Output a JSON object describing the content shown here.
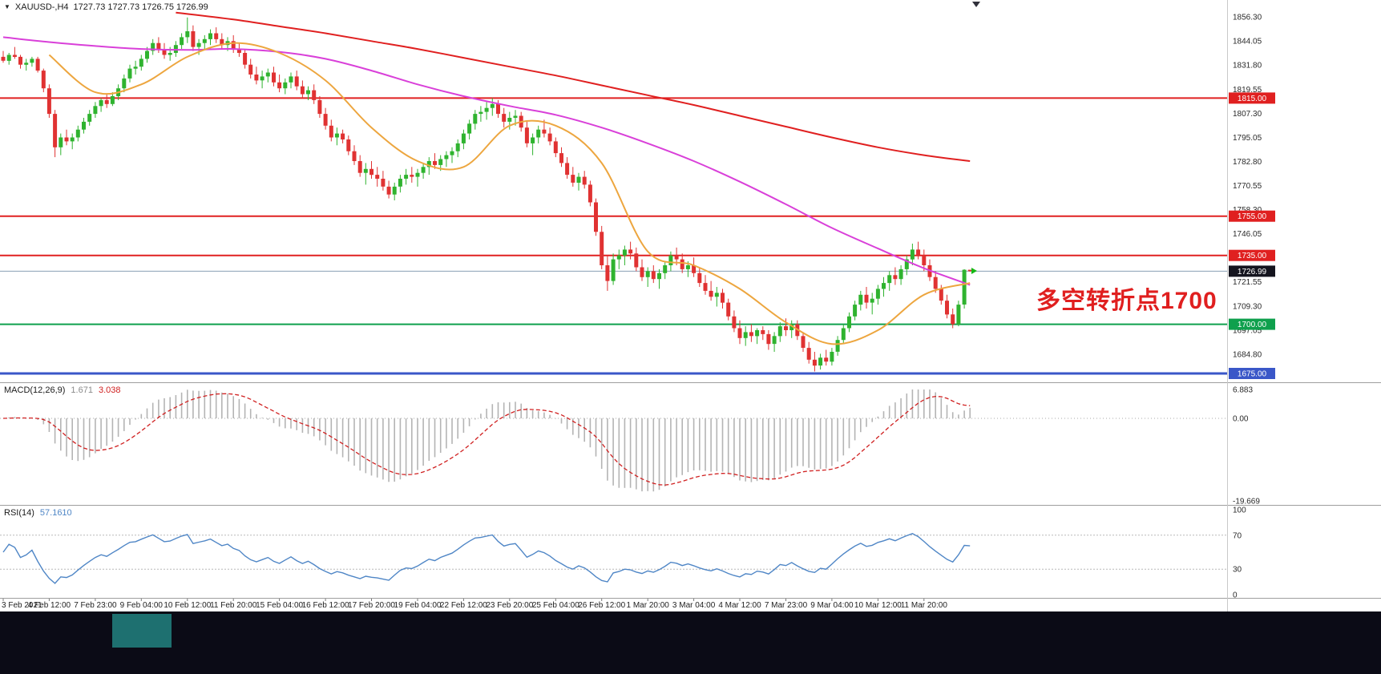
{
  "window": {
    "dropdown_icon": "▼",
    "symbol_period": "XAUUSD-,H4",
    "ohlc_text": "1727.73 1727.73 1726.75 1726.99",
    "annotation": {
      "text": "多空转折点1700",
      "color": "#e01f1f"
    }
  },
  "colors": {
    "background": "#ffffff",
    "candle_up": "#2fb32f",
    "candle_down": "#e03232",
    "ma_red": "#e02020",
    "ma_magenta": "#d940d9",
    "ma_orange": "#eda63f",
    "histogram": "#b4b4b4",
    "signal_line": "#d02020",
    "rsi_line": "#4f86c6",
    "separator": "#9e9e9e",
    "scale_text": "#2a2a2a",
    "current_price_line": "#8aa0b4",
    "current_price_box": "#14141e",
    "bottom_bar_bg": "#0b0b16",
    "bottom_bar_accent": "#1e7070"
  },
  "chart_data": {
    "type": "candlestick",
    "symbol": "XAUUSD-",
    "timeframe": "H4",
    "price_axis": {
      "top": 1864.9,
      "bottom": 1670.5,
      "ticks": [
        "1856.30",
        "1844.05",
        "1831.80",
        "1819.55",
        "1807.30",
        "1795.05",
        "1782.80",
        "1770.55",
        "1758.30",
        "1746.05",
        "1733.80",
        "1721.55",
        "1709.30",
        "1697.05",
        "1684.80",
        "1672.55"
      ]
    },
    "hlines": [
      {
        "price": 1815.0,
        "label": "1815.00",
        "color": "#e02020",
        "width": 2
      },
      {
        "price": 1755.0,
        "label": "1755.00",
        "color": "#e02020",
        "width": 2
      },
      {
        "price": 1735.0,
        "label": "1735.00",
        "color": "#e02020",
        "width": 2
      },
      {
        "price": 1700.0,
        "label": "1700.00",
        "color": "#0fa04d",
        "width": 2
      },
      {
        "price": 1675.0,
        "label": "1675.00",
        "color": "#3a57c8",
        "width": 3
      }
    ],
    "current_price": {
      "value": 1726.99,
      "label": "1726.99"
    },
    "candles": [
      [
        1836,
        1839,
        1833,
        1834
      ],
      [
        1834,
        1838,
        1832,
        1837
      ],
      [
        1837,
        1841,
        1835,
        1836
      ],
      [
        1836,
        1837,
        1830,
        1832
      ],
      [
        1832,
        1835,
        1829,
        1833
      ],
      [
        1833,
        1836,
        1831,
        1835
      ],
      [
        1835,
        1836,
        1828,
        1829
      ],
      [
        1829,
        1830,
        1818,
        1820
      ],
      [
        1820,
        1822,
        1805,
        1807
      ],
      [
        1807,
        1809,
        1785,
        1790
      ],
      [
        1790,
        1797,
        1786,
        1795
      ],
      [
        1795,
        1799,
        1791,
        1793
      ],
      [
        1793,
        1797,
        1789,
        1795
      ],
      [
        1795,
        1801,
        1793,
        1799
      ],
      [
        1799,
        1805,
        1797,
        1803
      ],
      [
        1803,
        1809,
        1801,
        1807
      ],
      [
        1807,
        1813,
        1805,
        1811
      ],
      [
        1811,
        1815,
        1808,
        1814
      ],
      [
        1814,
        1817,
        1810,
        1812
      ],
      [
        1812,
        1818,
        1811,
        1816
      ],
      [
        1816,
        1822,
        1814,
        1820
      ],
      [
        1820,
        1827,
        1818,
        1825
      ],
      [
        1825,
        1832,
        1823,
        1830
      ],
      [
        1830,
        1834,
        1827,
        1831
      ],
      [
        1831,
        1837,
        1829,
        1835
      ],
      [
        1835,
        1841,
        1833,
        1839
      ],
      [
        1839,
        1845,
        1837,
        1843
      ],
      [
        1843,
        1846,
        1838,
        1840
      ],
      [
        1840,
        1843,
        1835,
        1837
      ],
      [
        1837,
        1841,
        1834,
        1838
      ],
      [
        1838,
        1844,
        1836,
        1842
      ],
      [
        1842,
        1848,
        1840,
        1846
      ],
      [
        1846,
        1856,
        1843,
        1849
      ],
      [
        1849,
        1852,
        1839,
        1841
      ],
      [
        1841,
        1845,
        1837,
        1843
      ],
      [
        1843,
        1847,
        1840,
        1845
      ],
      [
        1845,
        1850,
        1842,
        1848
      ],
      [
        1848,
        1851,
        1843,
        1845
      ],
      [
        1845,
        1848,
        1840,
        1842
      ],
      [
        1842,
        1846,
        1839,
        1844
      ],
      [
        1844,
        1847,
        1838,
        1840
      ],
      [
        1840,
        1843,
        1836,
        1838
      ],
      [
        1838,
        1840,
        1830,
        1832
      ],
      [
        1832,
        1835,
        1825,
        1827
      ],
      [
        1827,
        1831,
        1822,
        1824
      ],
      [
        1824,
        1829,
        1820,
        1826
      ],
      [
        1826,
        1830,
        1823,
        1828
      ],
      [
        1828,
        1831,
        1821,
        1823
      ],
      [
        1823,
        1827,
        1818,
        1820
      ],
      [
        1820,
        1825,
        1817,
        1823
      ],
      [
        1823,
        1828,
        1820,
        1826
      ],
      [
        1826,
        1829,
        1819,
        1821
      ],
      [
        1821,
        1824,
        1815,
        1817
      ],
      [
        1817,
        1821,
        1814,
        1819
      ],
      [
        1819,
        1822,
        1812,
        1814
      ],
      [
        1814,
        1816,
        1805,
        1807
      ],
      [
        1807,
        1810,
        1799,
        1801
      ],
      [
        1801,
        1804,
        1793,
        1795
      ],
      [
        1795,
        1800,
        1791,
        1797
      ],
      [
        1797,
        1799,
        1792,
        1794
      ],
      [
        1794,
        1796,
        1786,
        1788
      ],
      [
        1788,
        1791,
        1781,
        1783
      ],
      [
        1783,
        1786,
        1775,
        1777
      ],
      [
        1777,
        1782,
        1771,
        1779
      ],
      [
        1779,
        1783,
        1774,
        1776
      ],
      [
        1776,
        1780,
        1770,
        1774
      ],
      [
        1774,
        1778,
        1768,
        1770
      ],
      [
        1770,
        1773,
        1764,
        1766
      ],
      [
        1766,
        1772,
        1763,
        1770
      ],
      [
        1770,
        1776,
        1767,
        1774
      ],
      [
        1774,
        1779,
        1771,
        1776
      ],
      [
        1776,
        1780,
        1772,
        1775
      ],
      [
        1775,
        1779,
        1770,
        1777
      ],
      [
        1777,
        1782,
        1774,
        1780
      ],
      [
        1780,
        1785,
        1776,
        1783
      ],
      [
        1783,
        1787,
        1779,
        1781
      ],
      [
        1781,
        1786,
        1778,
        1784
      ],
      [
        1784,
        1788,
        1780,
        1786
      ],
      [
        1786,
        1790,
        1782,
        1788
      ],
      [
        1788,
        1794,
        1785,
        1792
      ],
      [
        1792,
        1799,
        1789,
        1797
      ],
      [
        1797,
        1804,
        1794,
        1802
      ],
      [
        1802,
        1809,
        1799,
        1807
      ],
      [
        1807,
        1811,
        1803,
        1808
      ],
      [
        1808,
        1813,
        1804,
        1810
      ],
      [
        1810,
        1815,
        1806,
        1812
      ],
      [
        1812,
        1814,
        1805,
        1807
      ],
      [
        1807,
        1810,
        1800,
        1803
      ],
      [
        1803,
        1808,
        1799,
        1805
      ],
      [
        1805,
        1809,
        1801,
        1806
      ],
      [
        1806,
        1808,
        1798,
        1800
      ],
      [
        1800,
        1803,
        1790,
        1792
      ],
      [
        1792,
        1797,
        1786,
        1795
      ],
      [
        1795,
        1801,
        1792,
        1799
      ],
      [
        1799,
        1804,
        1795,
        1797
      ],
      [
        1797,
        1800,
        1791,
        1793
      ],
      [
        1793,
        1795,
        1785,
        1787
      ],
      [
        1787,
        1790,
        1780,
        1782
      ],
      [
        1782,
        1785,
        1774,
        1776
      ],
      [
        1776,
        1780,
        1770,
        1772
      ],
      [
        1772,
        1777,
        1768,
        1775
      ],
      [
        1775,
        1778,
        1769,
        1771
      ],
      [
        1771,
        1773,
        1760,
        1762
      ],
      [
        1762,
        1764,
        1745,
        1747
      ],
      [
        1747,
        1750,
        1728,
        1730
      ],
      [
        1730,
        1735,
        1717,
        1722
      ],
      [
        1722,
        1736,
        1720,
        1733
      ],
      [
        1733,
        1738,
        1728,
        1735
      ],
      [
        1735,
        1740,
        1730,
        1738
      ],
      [
        1738,
        1742,
        1733,
        1736
      ],
      [
        1736,
        1739,
        1727,
        1729
      ],
      [
        1729,
        1733,
        1722,
        1724
      ],
      [
        1724,
        1729,
        1719,
        1727
      ],
      [
        1727,
        1730,
        1721,
        1723
      ],
      [
        1723,
        1728,
        1718,
        1726
      ],
      [
        1726,
        1732,
        1723,
        1730
      ],
      [
        1730,
        1737,
        1727,
        1735
      ],
      [
        1735,
        1739,
        1730,
        1733
      ],
      [
        1733,
        1736,
        1726,
        1728
      ],
      [
        1728,
        1732,
        1724,
        1730
      ],
      [
        1730,
        1734,
        1724,
        1726
      ],
      [
        1726,
        1729,
        1719,
        1721
      ],
      [
        1721,
        1725,
        1715,
        1717
      ],
      [
        1717,
        1722,
        1712,
        1714
      ],
      [
        1714,
        1719,
        1709,
        1716
      ],
      [
        1716,
        1718,
        1708,
        1711
      ],
      [
        1711,
        1713,
        1702,
        1704
      ],
      [
        1704,
        1707,
        1696,
        1698
      ],
      [
        1698,
        1702,
        1690,
        1693
      ],
      [
        1693,
        1699,
        1689,
        1696
      ],
      [
        1696,
        1700,
        1691,
        1694
      ],
      [
        1694,
        1698,
        1690,
        1697
      ],
      [
        1697,
        1699,
        1692,
        1695
      ],
      [
        1695,
        1697,
        1687,
        1690
      ],
      [
        1690,
        1696,
        1686,
        1694
      ],
      [
        1694,
        1701,
        1691,
        1699
      ],
      [
        1699,
        1703,
        1694,
        1697
      ],
      [
        1697,
        1702,
        1693,
        1700
      ],
      [
        1700,
        1702,
        1692,
        1694
      ],
      [
        1694,
        1696,
        1686,
        1688
      ],
      [
        1688,
        1691,
        1680,
        1682
      ],
      [
        1682,
        1686,
        1676,
        1679
      ],
      [
        1679,
        1685,
        1677,
        1683
      ],
      [
        1683,
        1687,
        1679,
        1681
      ],
      [
        1681,
        1688,
        1679,
        1686
      ],
      [
        1686,
        1694,
        1684,
        1692
      ],
      [
        1692,
        1700,
        1690,
        1698
      ],
      [
        1698,
        1706,
        1696,
        1704
      ],
      [
        1704,
        1712,
        1702,
        1710
      ],
      [
        1710,
        1717,
        1707,
        1715
      ],
      [
        1715,
        1719,
        1708,
        1711
      ],
      [
        1711,
        1716,
        1705,
        1713
      ],
      [
        1713,
        1720,
        1710,
        1718
      ],
      [
        1718,
        1724,
        1714,
        1721
      ],
      [
        1721,
        1727,
        1717,
        1725
      ],
      [
        1725,
        1729,
        1720,
        1723
      ],
      [
        1723,
        1730,
        1720,
        1728
      ],
      [
        1728,
        1735,
        1725,
        1733
      ],
      [
        1733,
        1741,
        1730,
        1738
      ],
      [
        1738,
        1742,
        1733,
        1735
      ],
      [
        1735,
        1738,
        1727,
        1730
      ],
      [
        1730,
        1733,
        1722,
        1724
      ],
      [
        1724,
        1727,
        1716,
        1718
      ],
      [
        1718,
        1720,
        1710,
        1712
      ],
      [
        1712,
        1715,
        1703,
        1705
      ],
      [
        1705,
        1708,
        1698,
        1700
      ],
      [
        1700,
        1712,
        1699,
        1710
      ],
      [
        1710,
        1728,
        1708,
        1727.7
      ],
      [
        1727.73,
        1727.73,
        1726.75,
        1726.99
      ]
    ],
    "ma_lines": [
      {
        "name": "sma-long-red",
        "color": "#e02020",
        "width": 2,
        "points": [
          [
            30,
            1858.5
          ],
          [
            40,
            1855
          ],
          [
            48,
            1851.5
          ],
          [
            56,
            1848
          ],
          [
            64,
            1844
          ],
          [
            72,
            1840
          ],
          [
            80,
            1835.5
          ],
          [
            88,
            1831
          ],
          [
            96,
            1826.5
          ],
          [
            104,
            1821.5
          ],
          [
            112,
            1816.5
          ],
          [
            120,
            1811.5
          ],
          [
            128,
            1806
          ],
          [
            136,
            1800.5
          ],
          [
            144,
            1795
          ],
          [
            152,
            1790
          ],
          [
            160,
            1786
          ],
          [
            168,
            1783
          ]
        ]
      },
      {
        "name": "sma-mid-magenta",
        "color": "#d940d9",
        "width": 2,
        "points": [
          [
            0,
            1846
          ],
          [
            8,
            1843.5
          ],
          [
            16,
            1841.5
          ],
          [
            24,
            1840
          ],
          [
            32,
            1839.5
          ],
          [
            40,
            1840
          ],
          [
            48,
            1838.5
          ],
          [
            56,
            1835
          ],
          [
            64,
            1829
          ],
          [
            72,
            1822
          ],
          [
            80,
            1816
          ],
          [
            88,
            1811
          ],
          [
            96,
            1806.5
          ],
          [
            104,
            1800
          ],
          [
            112,
            1792
          ],
          [
            120,
            1783
          ],
          [
            128,
            1772.5
          ],
          [
            136,
            1761
          ],
          [
            144,
            1749
          ],
          [
            152,
            1738.5
          ],
          [
            160,
            1728.5
          ],
          [
            168,
            1720
          ]
        ]
      },
      {
        "name": "sma-short-orange",
        "color": "#eda63f",
        "width": 2,
        "points": [
          [
            8,
            1837
          ],
          [
            16,
            1818
          ],
          [
            24,
            1822
          ],
          [
            32,
            1836
          ],
          [
            40,
            1843
          ],
          [
            48,
            1838
          ],
          [
            56,
            1824
          ],
          [
            64,
            1800
          ],
          [
            72,
            1783
          ],
          [
            80,
            1780
          ],
          [
            88,
            1801
          ],
          [
            96,
            1801
          ],
          [
            104,
            1782
          ],
          [
            112,
            1737
          ],
          [
            120,
            1730
          ],
          [
            128,
            1718
          ],
          [
            136,
            1701
          ],
          [
            144,
            1690
          ],
          [
            152,
            1697
          ],
          [
            160,
            1715
          ],
          [
            168,
            1721
          ]
        ]
      }
    ],
    "time_labels": [
      {
        "i": 0,
        "t": "3 Feb 2021"
      },
      {
        "i": 8,
        "t": "4 Feb 12:00"
      },
      {
        "i": 16,
        "t": "7 Feb 23:00"
      },
      {
        "i": 24,
        "t": "9 Feb 04:00"
      },
      {
        "i": 32,
        "t": "10 Feb 12:00"
      },
      {
        "i": 40,
        "t": "11 Feb 20:00"
      },
      {
        "i": 48,
        "t": "15 Feb 04:00"
      },
      {
        "i": 56,
        "t": "16 Feb 12:00"
      },
      {
        "i": 64,
        "t": "17 Feb 20:00"
      },
      {
        "i": 72,
        "t": "19 Feb 04:00"
      },
      {
        "i": 80,
        "t": "22 Feb 12:00"
      },
      {
        "i": 88,
        "t": "23 Feb 20:00"
      },
      {
        "i": 96,
        "t": "25 Feb 04:00"
      },
      {
        "i": 104,
        "t": "26 Feb 12:00"
      },
      {
        "i": 112,
        "t": "1 Mar 20:00"
      },
      {
        "i": 120,
        "t": "3 Mar 04:00"
      },
      {
        "i": 128,
        "t": "4 Mar 12:00"
      },
      {
        "i": 136,
        "t": "7 Mar 23:00"
      },
      {
        "i": 144,
        "t": "9 Mar 04:00"
      },
      {
        "i": 152,
        "t": "10 Mar 12:00"
      },
      {
        "i": 160,
        "t": "11 Mar 20:00"
      }
    ],
    "macd": {
      "label": "MACD(12,26,9)",
      "main_value": "1.671",
      "signal_value": "3.038",
      "fast": 12,
      "slow": 26,
      "signal": 9,
      "scale": {
        "max": 6.883,
        "min": -19.669,
        "labels": [
          "6.883",
          "0.00",
          "-19.669"
        ]
      }
    },
    "rsi": {
      "label": "RSI(14)",
      "value": "57.1610",
      "period": 14,
      "levels": [
        70,
        30
      ],
      "scale_labels": [
        "100",
        "70",
        "30",
        "0"
      ]
    }
  }
}
